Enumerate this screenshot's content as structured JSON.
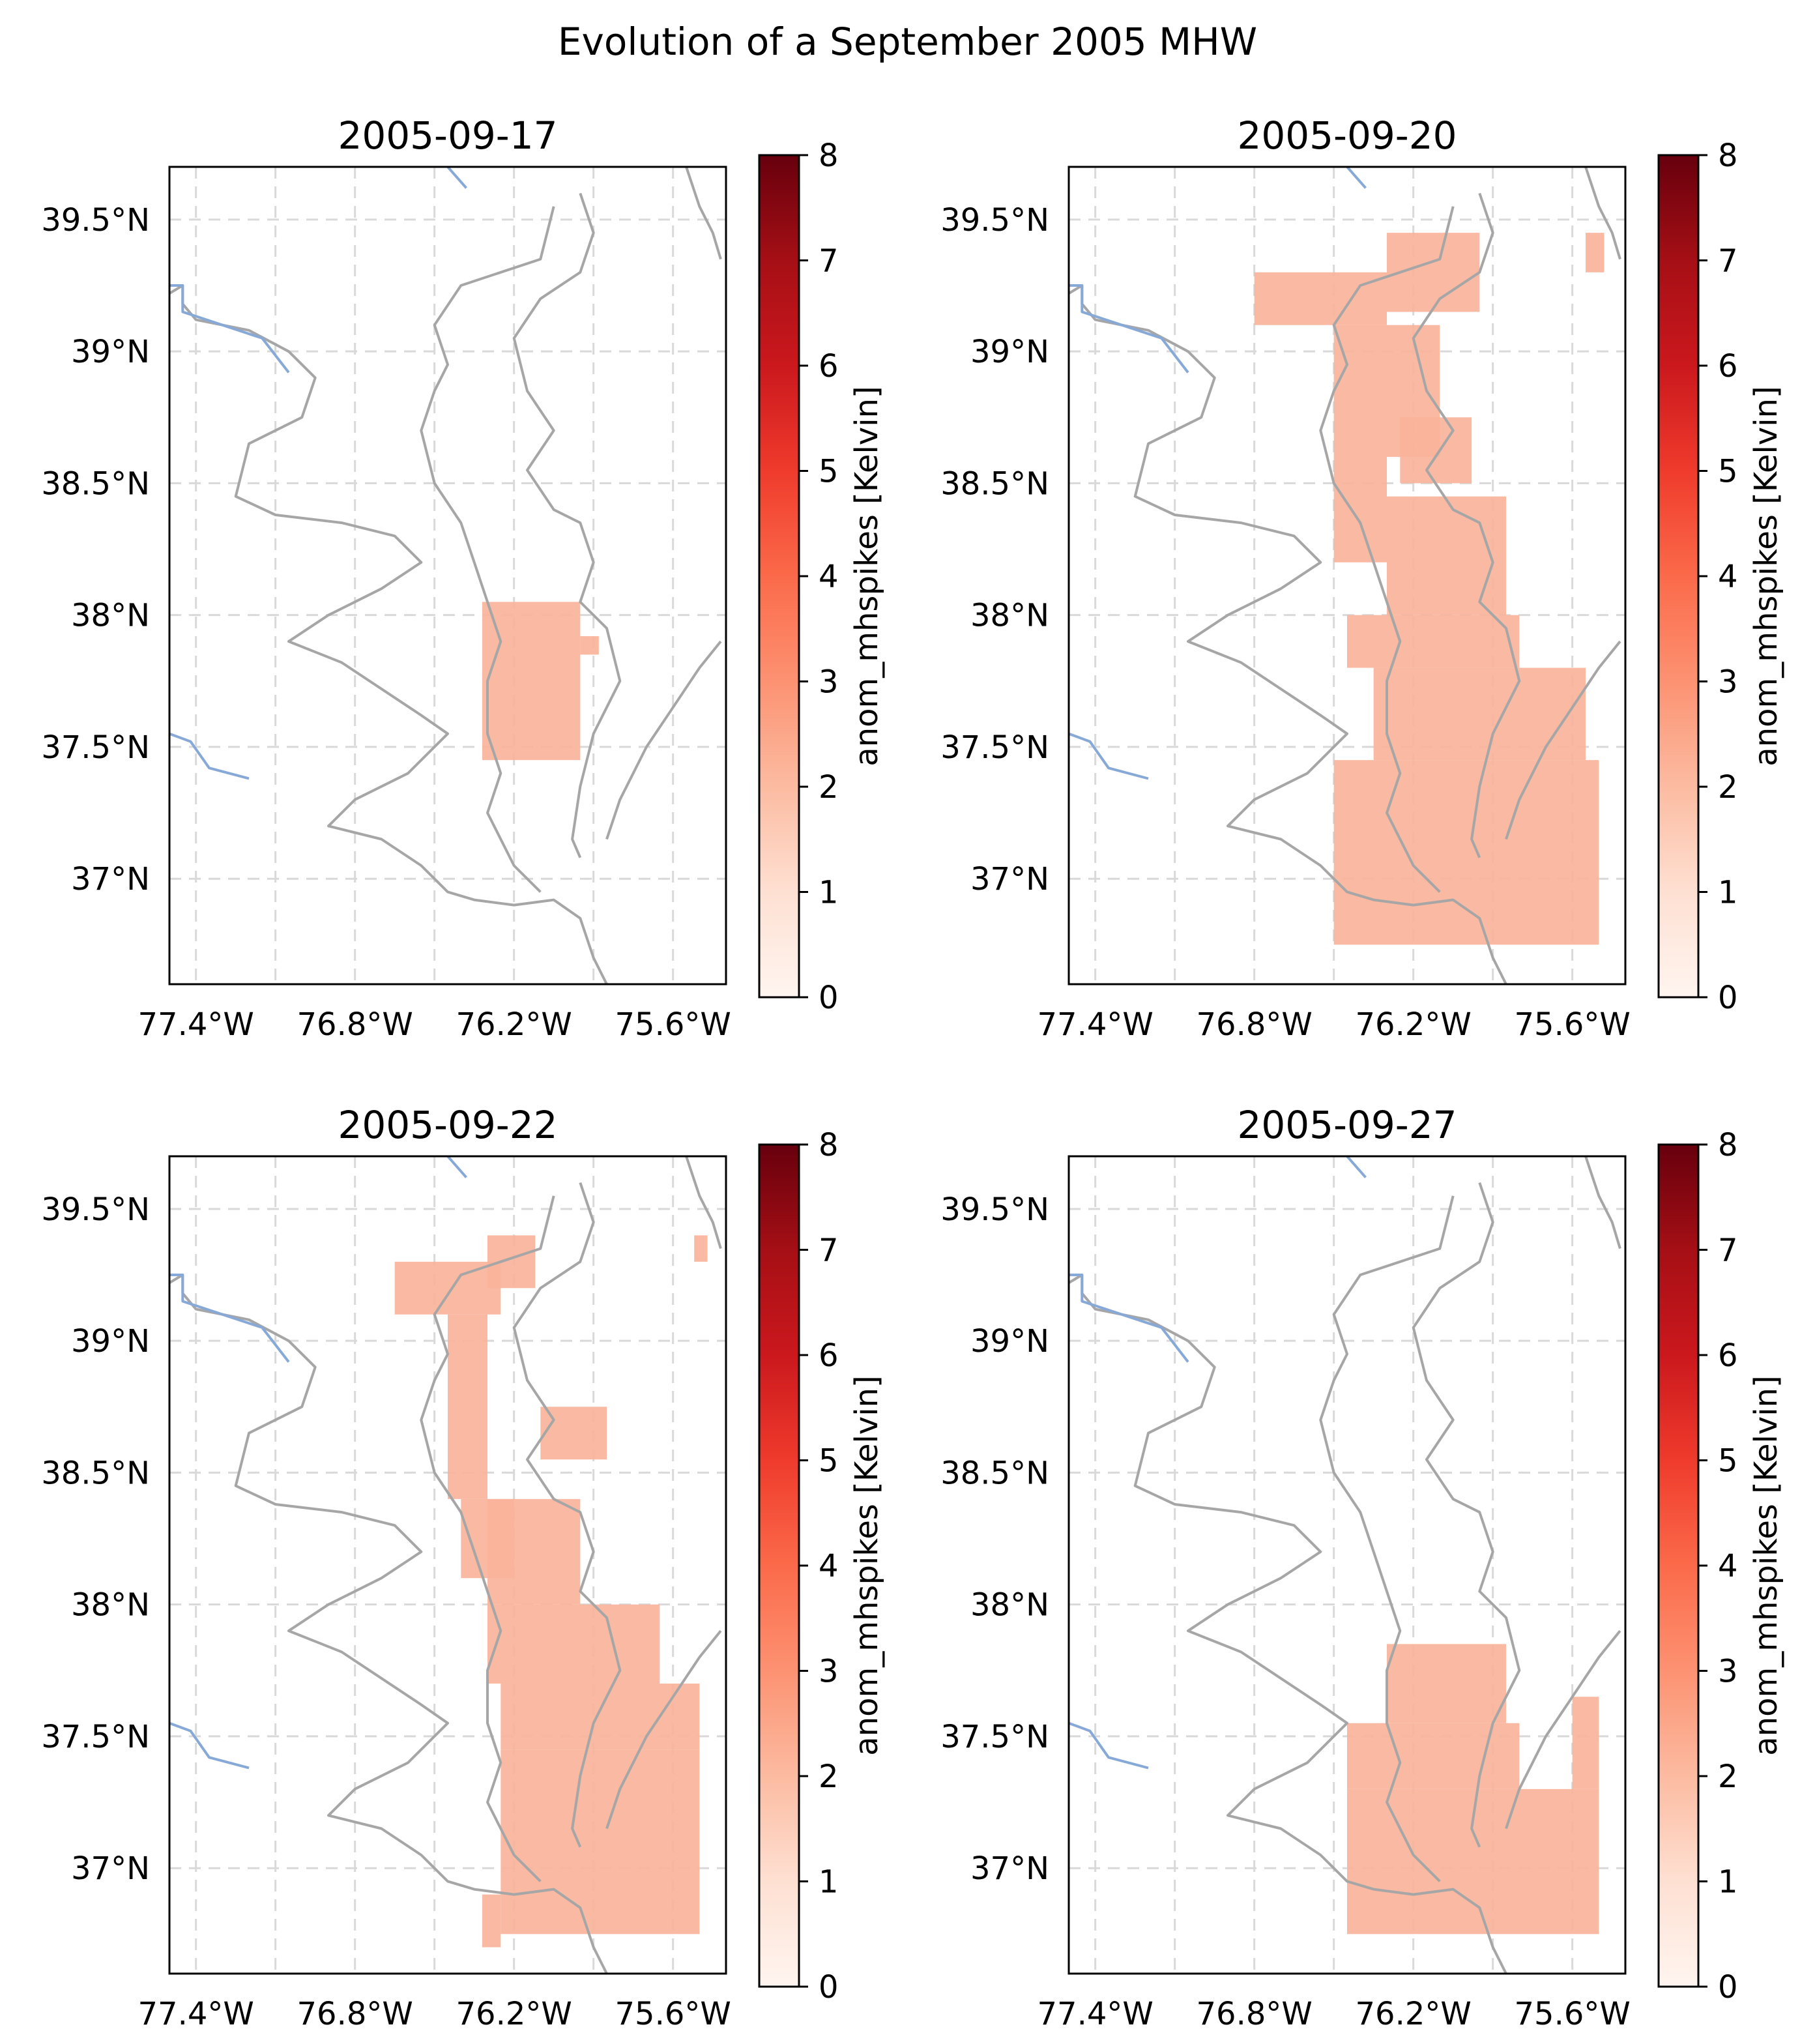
{
  "title": "Evolution of a September 2005 MHW",
  "colorbar": {
    "label": "anom_mhspikes [Kelvin]",
    "ticks": [
      "0",
      "1",
      "2",
      "3",
      "4",
      "5",
      "6",
      "7",
      "8"
    ],
    "range": [
      0,
      8
    ],
    "cmap": [
      "#fff5f0",
      "#fee0d2",
      "#fcbba1",
      "#fc9272",
      "#fb6a4a",
      "#ef3b2c",
      "#cb181d",
      "#a50f15",
      "#67000d"
    ]
  },
  "axes": {
    "xlim": [
      -77.5,
      -75.4
    ],
    "ylim": [
      36.6,
      39.7
    ],
    "xticks": [
      -77.4,
      -76.8,
      -76.2,
      -75.6
    ],
    "xtick_labels": [
      "77.4°W",
      "76.8°W",
      "76.2°W",
      "75.6°W"
    ],
    "yticks": [
      37.0,
      37.5,
      38.0,
      38.5,
      39.0,
      39.5
    ],
    "ytick_labels": [
      "37°N",
      "37.5°N",
      "38°N",
      "38.5°N",
      "39°N",
      "39.5°N"
    ],
    "grid_lon": [
      -77.4,
      -77.1,
      -76.8,
      -76.5,
      -76.2,
      -75.9,
      -75.6
    ],
    "grid_lat": [
      37.0,
      37.5,
      38.0,
      38.5,
      39.0,
      39.5
    ],
    "grid": "dashed"
  },
  "colors": {
    "coastline": "#a6a6a6",
    "river": "#87a9d8",
    "grid": "#d9d9d9",
    "cell": "#f8b39a"
  },
  "chart_data": [
    {
      "type": "heatmap",
      "title": "2005-09-17",
      "cell_value": 2.0,
      "cells": [
        {
          "lon": [
            -76.32,
            -75.95
          ],
          "lat": [
            37.45,
            38.05
          ]
        },
        {
          "lon": [
            -75.95,
            -75.88
          ],
          "lat": [
            37.85,
            37.92
          ]
        }
      ]
    },
    {
      "type": "heatmap",
      "title": "2005-09-20",
      "cell_value": 2.0,
      "cells": [
        {
          "lon": [
            -76.8,
            -76.3
          ],
          "lat": [
            39.1,
            39.3
          ]
        },
        {
          "lon": [
            -76.3,
            -75.95
          ],
          "lat": [
            39.15,
            39.45
          ]
        },
        {
          "lon": [
            -76.5,
            -76.1
          ],
          "lat": [
            38.6,
            39.1
          ]
        },
        {
          "lon": [
            -76.25,
            -75.98
          ],
          "lat": [
            38.5,
            38.75
          ]
        },
        {
          "lon": [
            -76.5,
            -76.3
          ],
          "lat": [
            38.2,
            38.6
          ]
        },
        {
          "lon": [
            -76.3,
            -75.85
          ],
          "lat": [
            38.0,
            38.45
          ]
        },
        {
          "lon": [
            -76.45,
            -75.8
          ],
          "lat": [
            37.8,
            38.0
          ]
        },
        {
          "lon": [
            -76.35,
            -75.55
          ],
          "lat": [
            37.45,
            37.8
          ]
        },
        {
          "lon": [
            -76.5,
            -75.5
          ],
          "lat": [
            36.75,
            37.45
          ]
        },
        {
          "lon": [
            -75.55,
            -75.48
          ],
          "lat": [
            39.3,
            39.45
          ]
        }
      ]
    },
    {
      "type": "heatmap",
      "title": "2005-09-22",
      "cell_value": 2.0,
      "cells": [
        {
          "lon": [
            -76.65,
            -76.25
          ],
          "lat": [
            39.1,
            39.3
          ]
        },
        {
          "lon": [
            -76.3,
            -76.12
          ],
          "lat": [
            39.2,
            39.4
          ]
        },
        {
          "lon": [
            -76.45,
            -76.3
          ],
          "lat": [
            38.4,
            39.1
          ]
        },
        {
          "lon": [
            -76.1,
            -75.85
          ],
          "lat": [
            38.55,
            38.75
          ]
        },
        {
          "lon": [
            -76.4,
            -76.2
          ],
          "lat": [
            38.1,
            38.4
          ]
        },
        {
          "lon": [
            -76.3,
            -75.95
          ],
          "lat": [
            38.0,
            38.4
          ]
        },
        {
          "lon": [
            -76.3,
            -75.65
          ],
          "lat": [
            37.7,
            38.0
          ]
        },
        {
          "lon": [
            -76.25,
            -75.5
          ],
          "lat": [
            37.45,
            37.7
          ]
        },
        {
          "lon": [
            -76.25,
            -75.5
          ],
          "lat": [
            36.75,
            37.45
          ]
        },
        {
          "lon": [
            -76.32,
            -76.25
          ],
          "lat": [
            36.7,
            36.9
          ]
        },
        {
          "lon": [
            -75.52,
            -75.47
          ],
          "lat": [
            39.3,
            39.4
          ]
        }
      ]
    },
    {
      "type": "heatmap",
      "title": "2005-09-27",
      "cell_value": 2.0,
      "cells": [
        {
          "lon": [
            -76.3,
            -75.85
          ],
          "lat": [
            37.55,
            37.85
          ]
        },
        {
          "lon": [
            -76.45,
            -75.8
          ],
          "lat": [
            37.3,
            37.55
          ]
        },
        {
          "lon": [
            -76.45,
            -75.5
          ],
          "lat": [
            36.75,
            37.3
          ]
        },
        {
          "lon": [
            -75.6,
            -75.5
          ],
          "lat": [
            37.3,
            37.65
          ]
        }
      ]
    }
  ]
}
